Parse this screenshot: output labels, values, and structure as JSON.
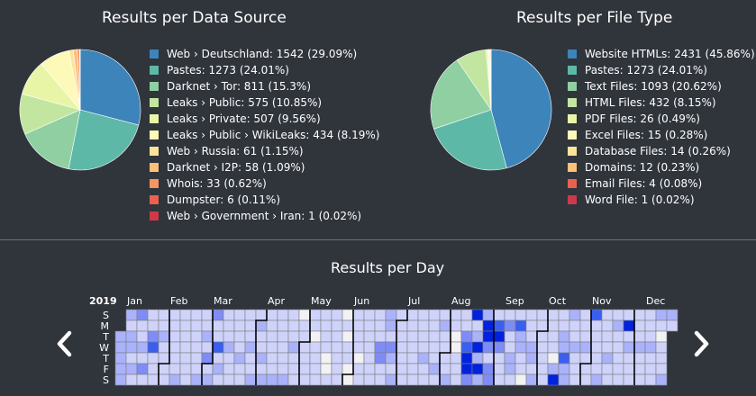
{
  "chart_data": [
    {
      "type": "pie",
      "title": "Results per Data Source",
      "slices": [
        {
          "label": "Web › Deutschland: 1542 (29.09%)",
          "value": 1542,
          "color": "#3c84ba"
        },
        {
          "label": "Pastes: 1273 (24.01%)",
          "value": 1273,
          "color": "#5db8a8"
        },
        {
          "label": "Darknet › Tor: 811 (15.3%)",
          "value": 811,
          "color": "#8fcfa2"
        },
        {
          "label": "Leaks › Public: 575 (10.85%)",
          "value": 575,
          "color": "#c2e6a0"
        },
        {
          "label": "Leaks › Private: 507 (9.56%)",
          "value": 507,
          "color": "#e9f5a6"
        },
        {
          "label": "Leaks › Public › WikiLeaks: 434 (8.19%)",
          "value": 434,
          "color": "#fdf9b8"
        },
        {
          "label": "Web › Russia: 61 (1.15%)",
          "value": 61,
          "color": "#fde39a"
        },
        {
          "label": "Darknet › I2P: 58 (1.09%)",
          "value": 58,
          "color": "#fbc07a"
        },
        {
          "label": "Whois: 33 (0.62%)",
          "value": 33,
          "color": "#f6955f"
        },
        {
          "label": "Dumpster: 6 (0.11%)",
          "value": 6,
          "color": "#e8624e"
        },
        {
          "label": "Web › Government › Iran: 1 (0.02%)",
          "value": 1,
          "color": "#cc3a4a"
        }
      ]
    },
    {
      "type": "pie",
      "title": "Results per File Type",
      "slices": [
        {
          "label": "Website HTMLs: 2431 (45.86%)",
          "value": 2431,
          "color": "#3c84ba"
        },
        {
          "label": "Pastes: 1273 (24.01%)",
          "value": 1273,
          "color": "#5db8a8"
        },
        {
          "label": "Text Files: 1093 (20.62%)",
          "value": 1093,
          "color": "#8fcfa2"
        },
        {
          "label": "HTML Files: 432 (8.15%)",
          "value": 432,
          "color": "#c2e6a0"
        },
        {
          "label": "PDF Files: 26 (0.49%)",
          "value": 26,
          "color": "#e9f5a6"
        },
        {
          "label": "Excel Files: 15 (0.28%)",
          "value": 15,
          "color": "#fdf9b8"
        },
        {
          "label": "Database Files: 14 (0.26%)",
          "value": 14,
          "color": "#fde39a"
        },
        {
          "label": "Domains: 12 (0.23%)",
          "value": 12,
          "color": "#fbc07a"
        },
        {
          "label": "Email Files: 4 (0.08%)",
          "value": 4,
          "color": "#e8624e"
        },
        {
          "label": "Word File: 1 (0.02%)",
          "value": 1,
          "color": "#cc3a4a"
        }
      ]
    },
    {
      "type": "heatmap",
      "title": "Results per Day",
      "year": "2019",
      "weekday_labels": [
        "S",
        "M",
        "T",
        "W",
        "T",
        "F",
        "S"
      ],
      "months": [
        "Jan",
        "Feb",
        "Mar",
        "Apr",
        "May",
        "Jun",
        "Jul",
        "Aug",
        "Sep",
        "Oct",
        "Nov",
        "Dec"
      ],
      "color_scale": [
        "#f2f2f2",
        "#cfd3fa",
        "#aab2fa",
        "#7f8cf6",
        "#3a5ff0",
        "#0022dd"
      ],
      "levels": [
        [
          2,
          2,
          2,
          2,
          2,
          2,
          1,
          2,
          2,
          1,
          2,
          1,
          3,
          1,
          1,
          2,
          1,
          3,
          1,
          1,
          1,
          3,
          4,
          1,
          1,
          1,
          1,
          1,
          2,
          1,
          1,
          1,
          1,
          1,
          1,
          1,
          1,
          1,
          1,
          2,
          1,
          1,
          1,
          1,
          1,
          1,
          1,
          1,
          1,
          1,
          1,
          1,
          1,
          2,
          1,
          1,
          2,
          1,
          3,
          1,
          2,
          3,
          1,
          1,
          4,
          1,
          2,
          1,
          1,
          1,
          1,
          2,
          1,
          1,
          1,
          1,
          1,
          1,
          1,
          2,
          1,
          1,
          1,
          1,
          1,
          2,
          1,
          1,
          2,
          1,
          2,
          1,
          1,
          2,
          1,
          2,
          1,
          1,
          1,
          1,
          1,
          1,
          2,
          1,
          1,
          1,
          1,
          1,
          1,
          2,
          1,
          1,
          1,
          2,
          1,
          1,
          1,
          0,
          1,
          1,
          1,
          1,
          1,
          1,
          1,
          1,
          0,
          1,
          1,
          1,
          1,
          1,
          1,
          1,
          1,
          0,
          0,
          1,
          1,
          1,
          1,
          1,
          1,
          1,
          1,
          0,
          1,
          0,
          1,
          1,
          0,
          0,
          1,
          1,
          1,
          1,
          0,
          1,
          1,
          1,
          1,
          1,
          1,
          1,
          1,
          1,
          1,
          1,
          1,
          3,
          3,
          1,
          1,
          2,
          2,
          1,
          3,
          2,
          1,
          2,
          1,
          1,
          1,
          1,
          1,
          1,
          1,
          1,
          1,
          1,
          1,
          1,
          1,
          1,
          1,
          1,
          1,
          1,
          2,
          1,
          1,
          1,
          1,
          1,
          1,
          1,
          2,
          1,
          1,
          2,
          1,
          1,
          1,
          1,
          2,
          1,
          1,
          0,
          0,
          1,
          1,
          1,
          1,
          1,
          3,
          4,
          5,
          5,
          3,
          5,
          1,
          2,
          5,
          2,
          5,
          2,
          2,
          5,
          5,
          3,
          1,
          3,
          3,
          1,
          4,
          5,
          3,
          1,
          1,
          1,
          1,
          3,
          1,
          1,
          2,
          2,
          1,
          1,
          4,
          2,
          2,
          1,
          1,
          0,
          1,
          1,
          1,
          2,
          2,
          1,
          2,
          1,
          1,
          1,
          1,
          1,
          1,
          1,
          1,
          1,
          1,
          1,
          0,
          2,
          5,
          1,
          1,
          2,
          2,
          4,
          2,
          2,
          2,
          1,
          1,
          2,
          1,
          1,
          1,
          1,
          1,
          1,
          2,
          1,
          1,
          1,
          4,
          1,
          1,
          1,
          1,
          1,
          2,
          1,
          1,
          1,
          1,
          2,
          1,
          1,
          1,
          2,
          1,
          1,
          1,
          1,
          1,
          1,
          5,
          1,
          2,
          1,
          1,
          1,
          1,
          1,
          1,
          2,
          1,
          1,
          1,
          1,
          1,
          1,
          2,
          1,
          1,
          1,
          2,
          1,
          0,
          1,
          1,
          1,
          2,
          2,
          1
        ]
      ]
    }
  ]
}
